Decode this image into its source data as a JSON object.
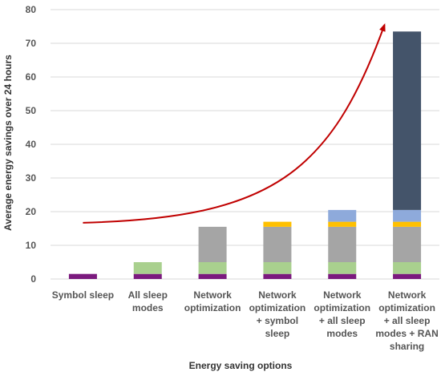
{
  "chart_data": {
    "type": "bar",
    "stacked": true,
    "title": "",
    "xlabel": "Energy saving options",
    "ylabel": "Average energy savings over 24 hours",
    "ylim": [
      0,
      80
    ],
    "yticks": [
      0,
      10,
      20,
      30,
      40,
      50,
      60,
      70,
      80
    ],
    "grid": true,
    "legend": "none",
    "categories": [
      [
        "Symbol sleep"
      ],
      [
        "All sleep",
        "modes"
      ],
      [
        "Network",
        "optimization"
      ],
      [
        "Network",
        "optimization",
        "+ symbol",
        "sleep"
      ],
      [
        "Network",
        "optimization",
        "+ all sleep",
        "modes"
      ],
      [
        "Network",
        "optimization",
        "+ all sleep",
        "modes + RAN",
        "sharing"
      ]
    ],
    "series": [
      {
        "color": "#7b1a7e",
        "values": [
          1.5,
          1.5,
          1.5,
          1.5,
          1.5,
          1.5
        ]
      },
      {
        "color": "#a9d08e",
        "values": [
          0,
          3.5,
          3.5,
          3.5,
          3.5,
          3.5
        ]
      },
      {
        "color": "#a5a5a5",
        "values": [
          0,
          0,
          10.5,
          10.5,
          10.5,
          10.5
        ]
      },
      {
        "color": "#ffc000",
        "values": [
          0,
          0,
          0,
          1.5,
          1.5,
          1.5
        ]
      },
      {
        "color": "#8eaadb",
        "values": [
          0,
          0,
          0,
          0,
          3.5,
          3.5
        ]
      },
      {
        "color": "#44546a",
        "values": [
          0,
          0,
          0,
          0,
          0,
          53.0
        ]
      }
    ],
    "trend_arrow": {
      "color": "#c00000",
      "from": {
        "x_category": 0,
        "y": 16.7
      },
      "to": {
        "x_category": 5,
        "y": 75.5
      }
    }
  }
}
